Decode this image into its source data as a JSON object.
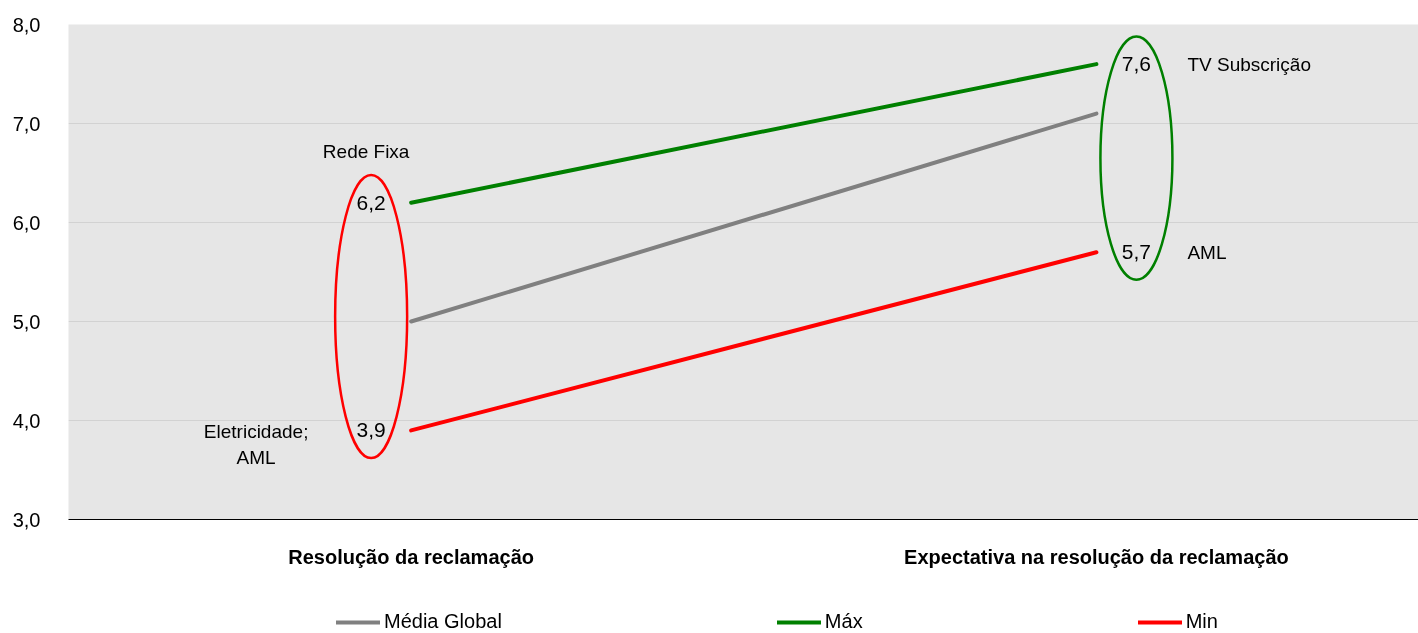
{
  "chart_data": {
    "type": "line",
    "categories": [
      "Resolução da reclamação",
      "Expectativa na resolução da reclamação"
    ],
    "series": [
      {
        "name": "Média Global",
        "color": "#808080",
        "values": [
          5.0,
          7.1
        ]
      },
      {
        "name": "Máx",
        "color": "#008000",
        "values": [
          6.2,
          7.6
        ],
        "value_labels": [
          "6,2",
          "7,6"
        ]
      },
      {
        "name": "Min",
        "color": "#ff0000",
        "values": [
          3.9,
          5.7
        ],
        "value_labels": [
          "3,9",
          "5,7"
        ]
      }
    ],
    "ylim": [
      3,
      8
    ],
    "yticks": [
      {
        "value": 3,
        "label": "3,0"
      },
      {
        "value": 4,
        "label": "4,0"
      },
      {
        "value": 5,
        "label": "5,0"
      },
      {
        "value": 6,
        "label": "6,0"
      },
      {
        "value": 7,
        "label": "7,0"
      },
      {
        "value": 8,
        "label": "8,0"
      }
    ],
    "grid": "y",
    "legend": "bottom",
    "line_style": "solid",
    "annotations": [
      "Rede Fixa",
      "Eletricidade; AML",
      "TV Subscrição",
      "AML"
    ]
  }
}
